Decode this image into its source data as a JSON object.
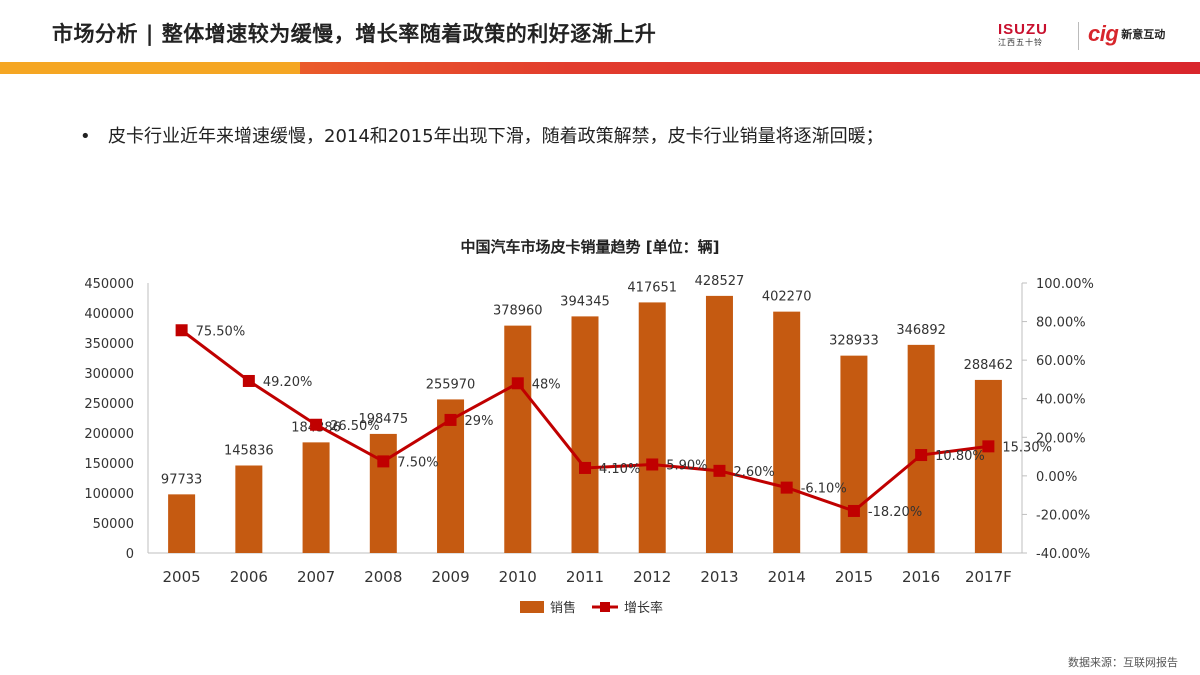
{
  "header": {
    "title": "市场分析 | 整体增速较为缓慢，增长率随着政策的利好逐渐上升",
    "logo_isuzu": "ISUZU",
    "logo_isuzu_sub": "江西五十铃",
    "logo_cig": "cig",
    "logo_cig_name": "新意互动",
    "colors": {
      "accent_orange": "#f5a623",
      "accent_red": "#d9262c"
    }
  },
  "bullet": {
    "marker": "•",
    "text": "皮卡行业近年来增速缓慢，2014和2015年出现下滑，随着政策解禁，皮卡行业销量将逐渐回暖；"
  },
  "footer": {
    "source": "数据来源：互联网报告"
  },
  "chart_data": {
    "type": "bar",
    "title": "中国汽车市场皮卡销量趋势 [单位：辆]",
    "categories": [
      "2005",
      "2006",
      "2007",
      "2008",
      "2009",
      "2010",
      "2011",
      "2012",
      "2013",
      "2014",
      "2015",
      "2016",
      "2017F"
    ],
    "series": [
      {
        "name": "销售",
        "type": "bar",
        "axis": "left",
        "color": "#c55a11",
        "values": [
          97733,
          145836,
          184386,
          198475,
          255970,
          378960,
          394345,
          417651,
          428527,
          402270,
          328933,
          346892,
          288462
        ],
        "labels": [
          "97733",
          "145836",
          "184386",
          "198475",
          "255970",
          "378960",
          "394345",
          "417651",
          "428527",
          "402270",
          "328933",
          "346892",
          "288462"
        ]
      },
      {
        "name": "增长率",
        "type": "line",
        "axis": "right",
        "color": "#c00000",
        "values": [
          75.5,
          49.2,
          26.5,
          7.5,
          29,
          48,
          4.1,
          5.9,
          2.6,
          -6.1,
          -18.2,
          10.8,
          15.3
        ],
        "labels": [
          "75.50%",
          "49.20%",
          "26.50%",
          "7.50%",
          "29%",
          "48%",
          "4.10%",
          "5.90%",
          "2.60%",
          "-6.10%",
          "-18.20%",
          "10.80%",
          "15.30%"
        ]
      }
    ],
    "y_left": {
      "lim": [
        0,
        450000
      ],
      "ticks": [
        0,
        50000,
        100000,
        150000,
        200000,
        250000,
        300000,
        350000,
        400000,
        450000
      ],
      "tick_labels": [
        "0",
        "50000",
        "100000",
        "150000",
        "200000",
        "250000",
        "300000",
        "350000",
        "400000",
        "450000"
      ]
    },
    "y_right": {
      "lim": [
        -40,
        100
      ],
      "ticks": [
        -40,
        -20,
        0,
        20,
        40,
        60,
        80,
        100
      ],
      "tick_labels": [
        "-40.00%",
        "-20.00%",
        "0.00%",
        "20.00%",
        "40.00%",
        "60.00%",
        "80.00%",
        "100.00%"
      ]
    },
    "grid": false,
    "legend": "bottom-center"
  }
}
